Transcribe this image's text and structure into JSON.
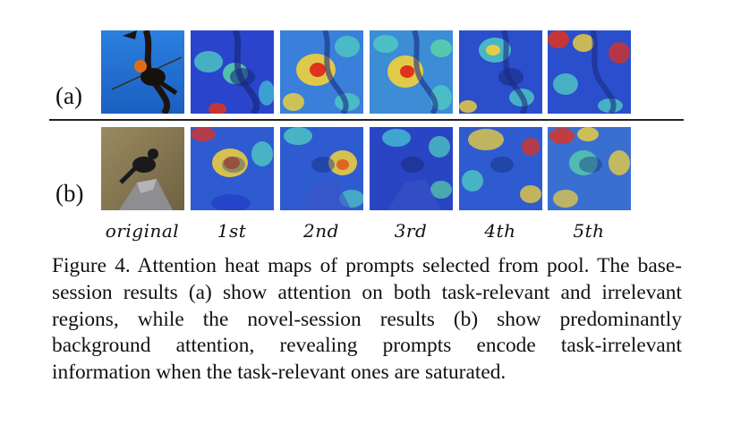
{
  "figure": {
    "row_labels": [
      "(a)",
      "(b)"
    ],
    "column_labels": [
      "original",
      "1st",
      "2nd",
      "3rd",
      "4th",
      "5th"
    ],
    "caption": "Figure 4. Attention heat maps of prompts selected from pool. The base-session results (a) show attention on both task-relevant and irrelevant regions, while the novel-session results (b) show predominantly background attention, revealing prompts encode task-irrelevant information when the task-relevant ones are saturated."
  },
  "colors": {
    "heat_low": "#2340c8",
    "heat_mid": "#45c7d6",
    "heat_warm": "#f2d23a",
    "heat_high": "#e0321d",
    "sky": "#1f6fd4",
    "background_brown": "#8a7a55"
  }
}
